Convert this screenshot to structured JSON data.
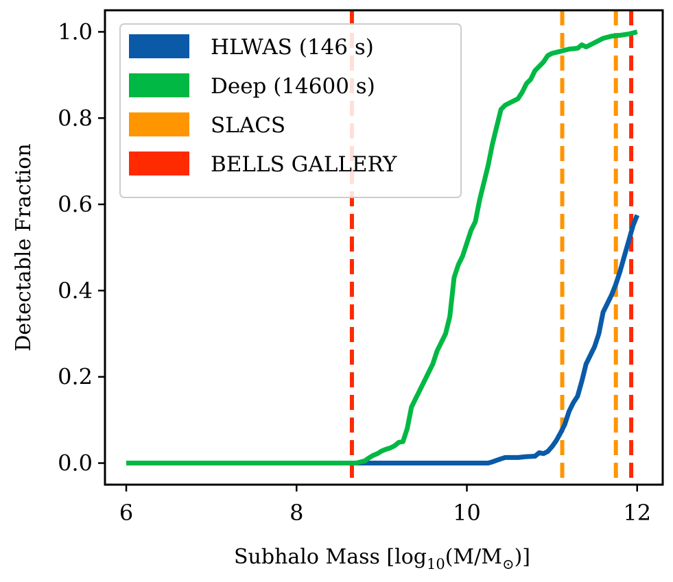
{
  "chart_data": {
    "type": "line",
    "xlabel": "Subhalo Mass [log",
    "xlabel_sub": "10",
    "xlabel_tail": "(M/M",
    "xlabel_sub2": "⊙",
    "xlabel_end": ")]",
    "ylabel": "Detectable Fraction",
    "xlim": [
      5.75,
      12.3
    ],
    "ylim": [
      -0.05,
      1.05
    ],
    "xticks": [
      6,
      8,
      10,
      12
    ],
    "xtick_labels": [
      "6",
      "8",
      "10",
      "12"
    ],
    "yticks": [
      0.0,
      0.2,
      0.4,
      0.6,
      0.8,
      1.0
    ],
    "ytick_labels": [
      "0.0",
      "0.2",
      "0.4",
      "0.6",
      "0.8",
      "1.0"
    ],
    "legend_position": "top-left",
    "series": [
      {
        "name": "HLWAS (146 s)",
        "color": "#0a5aa8",
        "style": "solid",
        "x": [
          6.0,
          8.0,
          8.6,
          9.0,
          9.5,
          10.0,
          10.2,
          10.25,
          10.3,
          10.4,
          10.45,
          10.5,
          10.6,
          10.7,
          10.8,
          10.85,
          10.9,
          10.95,
          11.0,
          11.05,
          11.1,
          11.15,
          11.2,
          11.25,
          11.3,
          11.35,
          11.4,
          11.45,
          11.5,
          11.55,
          11.6,
          11.65,
          11.7,
          11.75,
          11.8,
          11.85,
          11.9,
          11.95,
          12.0
        ],
        "y": [
          0.0,
          0.0,
          0.0,
          0.0,
          0.0,
          0.0,
          0.0,
          0.0,
          0.003,
          0.01,
          0.013,
          0.013,
          0.013,
          0.015,
          0.016,
          0.024,
          0.022,
          0.027,
          0.038,
          0.052,
          0.07,
          0.09,
          0.12,
          0.14,
          0.155,
          0.19,
          0.23,
          0.25,
          0.27,
          0.3,
          0.35,
          0.37,
          0.39,
          0.415,
          0.445,
          0.48,
          0.515,
          0.55,
          0.575
        ]
      },
      {
        "name": "Deep (14600 s)",
        "color": "#00b843",
        "style": "solid",
        "x": [
          6.0,
          8.0,
          8.5,
          8.7,
          8.8,
          8.85,
          8.9,
          8.95,
          9.0,
          9.05,
          9.1,
          9.15,
          9.2,
          9.25,
          9.3,
          9.35,
          9.4,
          9.45,
          9.5,
          9.55,
          9.6,
          9.65,
          9.7,
          9.75,
          9.8,
          9.85,
          9.9,
          9.95,
          10.0,
          10.05,
          10.1,
          10.15,
          10.2,
          10.25,
          10.3,
          10.35,
          10.4,
          10.45,
          10.5,
          10.55,
          10.6,
          10.65,
          10.7,
          10.75,
          10.8,
          10.85,
          10.9,
          10.95,
          11.0,
          11.1,
          11.2,
          11.3,
          11.35,
          11.4,
          11.5,
          11.6,
          11.7,
          11.8,
          11.9,
          12.0
        ],
        "y": [
          0.0,
          0.0,
          0.0,
          0.0,
          0.005,
          0.012,
          0.018,
          0.022,
          0.028,
          0.032,
          0.035,
          0.04,
          0.048,
          0.05,
          0.08,
          0.13,
          0.15,
          0.17,
          0.19,
          0.21,
          0.23,
          0.26,
          0.28,
          0.3,
          0.34,
          0.43,
          0.46,
          0.48,
          0.51,
          0.54,
          0.56,
          0.61,
          0.65,
          0.69,
          0.74,
          0.78,
          0.82,
          0.83,
          0.835,
          0.84,
          0.845,
          0.86,
          0.88,
          0.89,
          0.91,
          0.92,
          0.93,
          0.945,
          0.95,
          0.955,
          0.96,
          0.962,
          0.97,
          0.965,
          0.975,
          0.985,
          0.99,
          0.992,
          0.995,
          1.0
        ]
      },
      {
        "name": "SLACS",
        "color": "#ff9500",
        "style": "dashed-vlines",
        "x": [
          11.12,
          11.75
        ]
      },
      {
        "name": "BELLS GALLERY",
        "color": "#ff2a00",
        "style": "dashed-vlines",
        "x": [
          8.65,
          11.93
        ]
      }
    ]
  }
}
